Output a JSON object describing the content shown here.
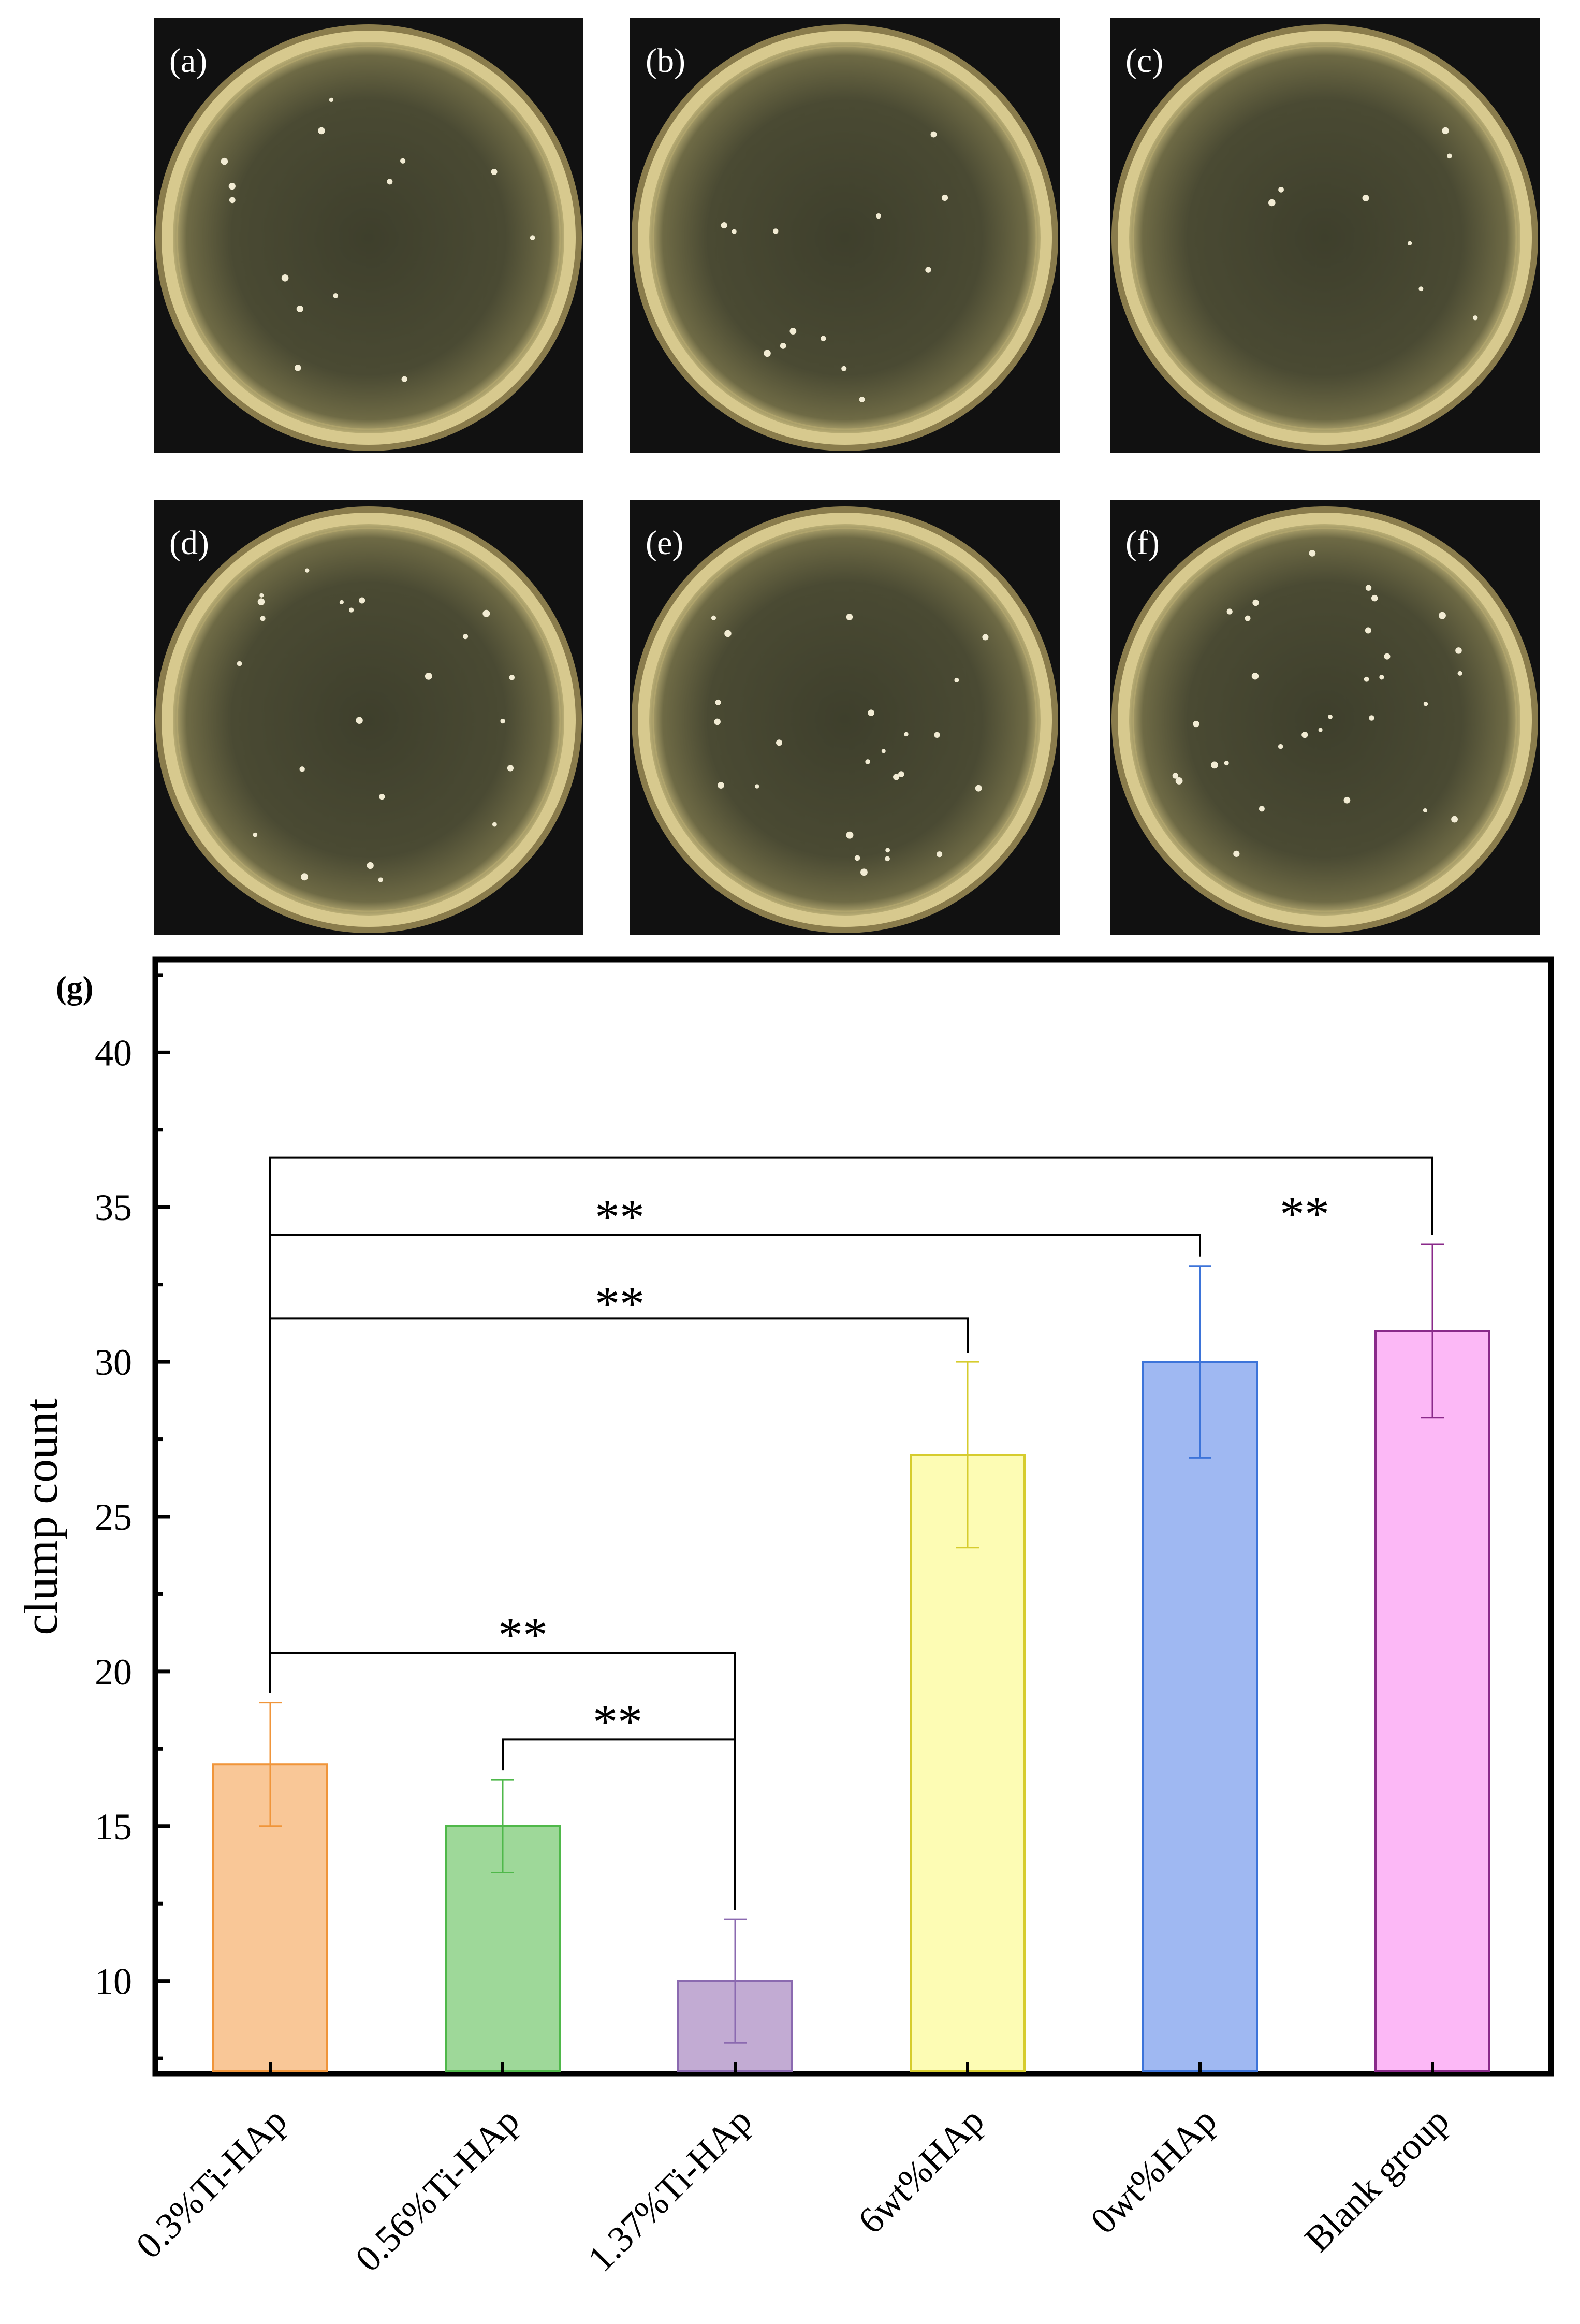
{
  "photos": [
    {
      "label": "(a)",
      "colonies": 14
    },
    {
      "label": "(b)",
      "colonies": 13
    },
    {
      "label": "(c)",
      "colonies": 8
    },
    {
      "label": "(d)",
      "colonies": 22
    },
    {
      "label": "(e)",
      "colonies": 24
    },
    {
      "label": "(f)",
      "colonies": 30
    }
  ],
  "chart_data": {
    "type": "bar",
    "panel_label": "(g)",
    "ylabel": "clump count",
    "xlabel": "",
    "ylim": [
      7,
      43
    ],
    "yticks": [
      10,
      15,
      20,
      25,
      30,
      35,
      40
    ],
    "categories": [
      "0.3%Ti-HAp",
      "0.56%Ti-HAp",
      "1.37%Ti-HAp",
      "6wt%HAp",
      "0wt%HAp",
      "Blank group"
    ],
    "values": [
      17,
      15,
      10,
      27,
      30,
      31
    ],
    "errors": [
      2,
      1.5,
      2,
      3,
      3.1,
      2.8
    ],
    "fill_colors": [
      "#f9c797",
      "#9ed899",
      "#c2abd3",
      "#fdfcb4",
      "#9fb8f2",
      "#fcb8f6"
    ],
    "edge_colors": [
      "#f0953a",
      "#4fb84a",
      "#8b6ab0",
      "#d6cc2e",
      "#3d74d9",
      "#8a2a8a"
    ],
    "significance": [
      {
        "from": 0,
        "to": 2,
        "label": "**",
        "level": 20.6
      },
      {
        "from": 1,
        "to": 2,
        "label": "**",
        "level": 17.8
      },
      {
        "from": 0,
        "to": 3,
        "label": "**",
        "level": 31.4
      },
      {
        "from": 0,
        "to": 4,
        "label": "**",
        "level": 34.1
      },
      {
        "from": 0,
        "to": 5,
        "label": "**",
        "level": 36.6
      }
    ]
  }
}
